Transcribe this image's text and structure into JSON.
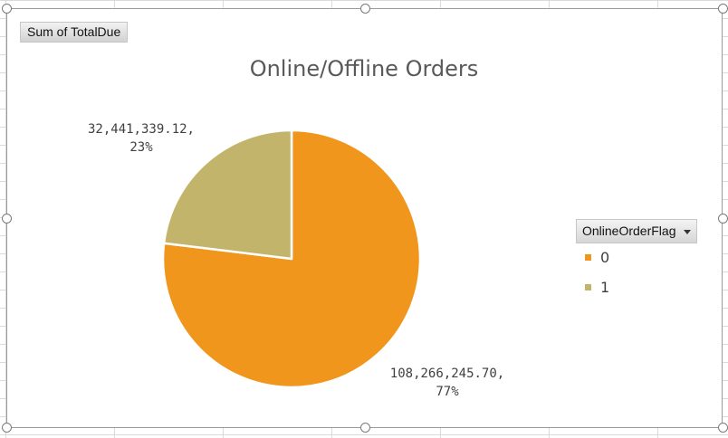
{
  "field_button": {
    "label": "Sum of TotalDue"
  },
  "legend": {
    "field_label": "OnlineOrderFlag",
    "dropdown_icon": "chevron-down-icon"
  },
  "colors": {
    "slice_0": "#f0961c",
    "slice_1": "#c3b46b",
    "slice_border": "#ffffff"
  },
  "chart_data": {
    "type": "pie",
    "title": "Online/Offline Orders",
    "series_name": "Sum of TotalDue",
    "categories": [
      "0",
      "1"
    ],
    "values": [
      108266245.7,
      32441339.12
    ],
    "labels": [
      {
        "value": "108,266,245.70,",
        "percent": "77%"
      },
      {
        "value": "32,441,339.12,",
        "percent": "23%"
      }
    ],
    "legend_position": "right"
  }
}
